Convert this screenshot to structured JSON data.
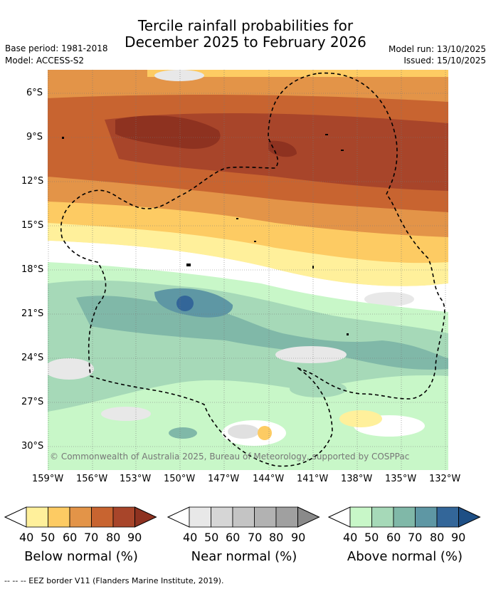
{
  "header": {
    "title_line1": "Tercile rainfall probabilities for",
    "title_line2": "December 2025 to February 2026",
    "base_period": "Base period: 1981-2018",
    "model": "Model: ACCESS-S2",
    "model_run": "Model run: 13/10/2025",
    "issued": "Issued: 15/10/2025"
  },
  "map": {
    "lat_labels": [
      "6°S",
      "9°S",
      "12°S",
      "15°S",
      "18°S",
      "21°S",
      "24°S",
      "27°S",
      "30°S"
    ],
    "lon_labels": [
      "159°W",
      "156°W",
      "153°W",
      "150°W",
      "147°W",
      "144°W",
      "141°W",
      "138°W",
      "135°W",
      "132°W"
    ],
    "copyright": "© Commonwealth of Australia 2025, Bureau of Meteorology, supported by COSPPac"
  },
  "legend": {
    "below": {
      "title": "Below normal (%)",
      "ticks": [
        "40",
        "50",
        "60",
        "70",
        "80",
        "90"
      ],
      "colors": [
        "#fff09b",
        "#fdcb63",
        "#e39448",
        "#c86430",
        "#a8452a",
        "#8e3220"
      ]
    },
    "near": {
      "title": "Near normal (%)",
      "ticks": [
        "40",
        "50",
        "60",
        "70",
        "80",
        "90"
      ],
      "colors": [
        "#e8e8e8",
        "#d6d6d6",
        "#c4c4c4",
        "#b2b2b2",
        "#a0a0a0",
        "#8a8a8a"
      ]
    },
    "above": {
      "title": "Above normal (%)",
      "ticks": [
        "40",
        "50",
        "60",
        "70",
        "80",
        "90"
      ],
      "colors": [
        "#c8f7c8",
        "#a6d9b8",
        "#80b8a8",
        "#5e97a4",
        "#336699",
        "#1e4f85"
      ]
    }
  },
  "footer": {
    "eez_note": "--  --  -- EEZ border V11 (Flanders Marine Institute, 2019)."
  }
}
